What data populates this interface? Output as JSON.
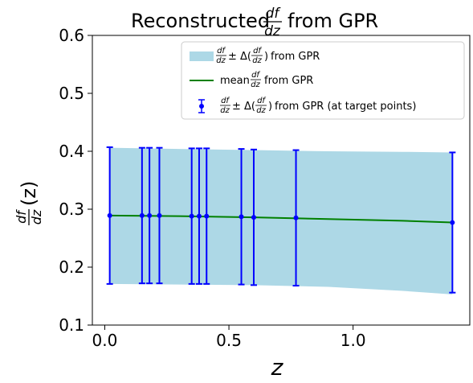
{
  "chart_data": {
    "type": "line",
    "title": {
      "prefix": "Reconstructed",
      "frac_num": "df",
      "frac_den": "dz",
      "suffix": "from GPR"
    },
    "xlabel": "z",
    "ylabel": {
      "frac_num": "df",
      "frac_den": "dz",
      "suffix": "(z)"
    },
    "xlim": [
      -0.05,
      1.47
    ],
    "ylim": [
      0.1,
      0.6
    ],
    "xticks": [
      0.0,
      0.5,
      1.0
    ],
    "xtick_labels": [
      "0.0",
      "0.5",
      "1.0"
    ],
    "yticks": [
      0.1,
      0.2,
      0.3,
      0.4,
      0.5,
      0.6
    ],
    "ytick_labels": [
      "0.1",
      "0.2",
      "0.3",
      "0.4",
      "0.5",
      "0.6"
    ],
    "grid": false,
    "legend_position": "top-right",
    "colors": {
      "band": "#add8e6",
      "mean": "#008000",
      "points": "#0000ff"
    },
    "band": {
      "x": [
        0.02,
        0.3,
        0.6,
        0.9,
        1.2,
        1.4
      ],
      "upper": [
        0.406,
        0.404,
        0.402,
        0.4,
        0.399,
        0.398
      ],
      "lower": [
        0.171,
        0.17,
        0.169,
        0.166,
        0.159,
        0.153
      ]
    },
    "mean": {
      "x": [
        0.02,
        0.3,
        0.6,
        0.9,
        1.2,
        1.4
      ],
      "y": [
        0.289,
        0.288,
        0.286,
        0.283,
        0.28,
        0.277
      ]
    },
    "points": {
      "x": [
        0.02,
        0.15,
        0.18,
        0.22,
        0.35,
        0.38,
        0.41,
        0.55,
        0.6,
        0.77,
        1.4
      ],
      "y": [
        0.289,
        0.289,
        0.289,
        0.289,
        0.288,
        0.288,
        0.288,
        0.287,
        0.286,
        0.285,
        0.277
      ],
      "err": [
        0.118,
        0.117,
        0.117,
        0.117,
        0.117,
        0.117,
        0.117,
        0.117,
        0.117,
        0.117,
        0.121
      ]
    },
    "legend": [
      {
        "kind": "band",
        "label_suffix": "from GPR"
      },
      {
        "kind": "line",
        "label_prefix": "mean",
        "label_suffix": "from GPR"
      },
      {
        "kind": "errorbar",
        "label_suffix": "from GPR (at target points)"
      }
    ]
  }
}
